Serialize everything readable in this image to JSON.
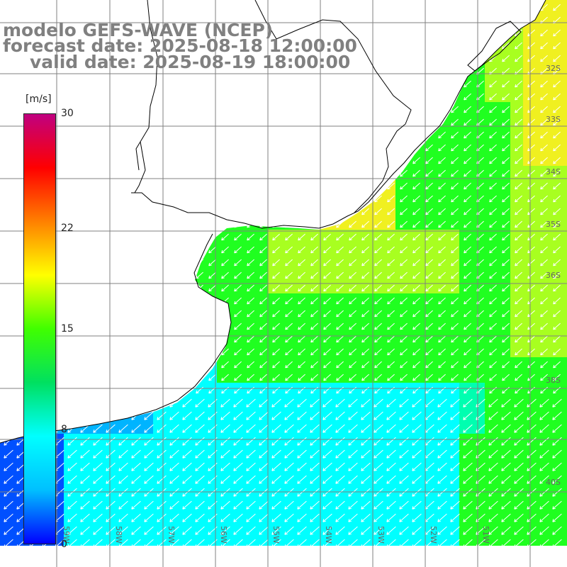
{
  "header": {
    "model": "modelo GEFS-WAVE (NCEP)",
    "forecast": "forecast date: 2025-08-18 12:00:00",
    "valid": "valid date: 2025-08-19 18:00:00"
  },
  "colorbar": {
    "unit": "[m/s]",
    "min": 0,
    "max": 30,
    "ticks": [
      "30",
      "22",
      "15",
      "8",
      "0"
    ],
    "tick_values": [
      30,
      22,
      15,
      8,
      0
    ],
    "stops": [
      "#0000ff",
      "#00c0ff",
      "#00ffff",
      "#00e060",
      "#40ff00",
      "#ffff00",
      "#ff8000",
      "#ff0000",
      "#c00080"
    ]
  },
  "map": {
    "lat_labels": [
      "32S",
      "33S",
      "34S",
      "35S",
      "36S",
      "38S",
      "40S"
    ],
    "lon_labels": [
      "59W",
      "58W",
      "57W",
      "56W",
      "55W",
      "54W",
      "53W",
      "52W",
      "51W"
    ],
    "colors": {
      "blue": "#0050ff",
      "light-blue": "#00b4ff",
      "cyan": "#00ffff",
      "aqua-green": "#00ffb0",
      "green": "#20ff20",
      "yellow-green": "#a8ff20",
      "yellow": "#f0f020",
      "land": "#ffffff",
      "grid": "#808080",
      "coast": "#000000",
      "arrow": "#ffffff"
    }
  }
}
